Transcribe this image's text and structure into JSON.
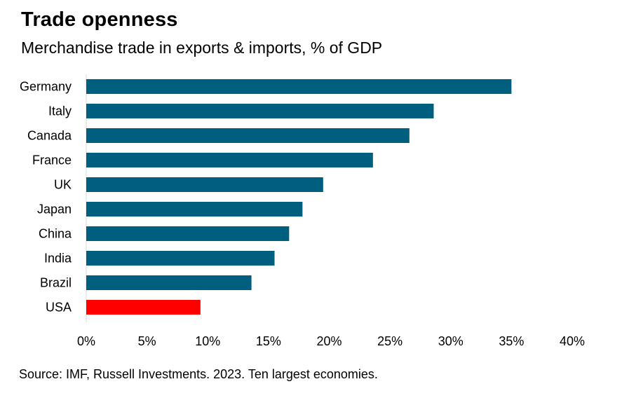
{
  "title": "Trade openness",
  "subtitle": "Merchandise trade in exports & imports, % of GDP",
  "source": "Source: IMF, Russell Investments. 2023. Ten largest economies.",
  "colors": {
    "bar": "#005F7F",
    "highlight": "#FF0000",
    "axis": "#D9D9D9"
  },
  "chart_data": {
    "type": "bar",
    "orientation": "horizontal",
    "title": "Trade openness",
    "subtitle": "Merchandise trade in exports & imports, % of GDP",
    "categories": [
      "Germany",
      "Italy",
      "Canada",
      "France",
      "UK",
      "Japan",
      "China",
      "India",
      "Brazil",
      "USA"
    ],
    "values": [
      35.0,
      28.6,
      26.6,
      23.6,
      19.5,
      17.8,
      16.7,
      15.5,
      13.6,
      9.4
    ],
    "highlight_category": "USA",
    "xlim": [
      0,
      40
    ],
    "xticks": [
      0,
      5,
      10,
      15,
      20,
      25,
      30,
      35,
      40
    ],
    "xtick_labels": [
      "0%",
      "5%",
      "10%",
      "15%",
      "20%",
      "25%",
      "30%",
      "35%",
      "40%"
    ],
    "grid": false,
    "legend": "none"
  }
}
